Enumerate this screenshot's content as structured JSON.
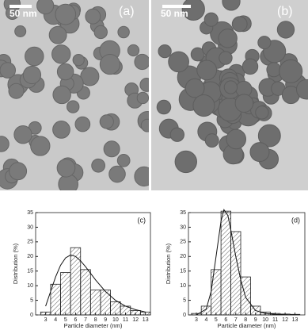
{
  "images": [
    {
      "scale_bar": "50 nm",
      "label": "(a)"
    },
    {
      "scale_bar": "50 nm",
      "label": "(b)"
    }
  ],
  "chart_data": [
    {
      "type": "histogram",
      "label": "(c)",
      "xlabel": "Particle diameter (nm)",
      "ylabel": "Distribution (%)",
      "bins": [
        2.5,
        3.5,
        4.5,
        5.5,
        6.5,
        7.5,
        8.5,
        9.5,
        10.5,
        11.5,
        12.5,
        13.5
      ],
      "values": [
        1,
        10.5,
        14.5,
        23,
        15.5,
        8.5,
        8.5,
        4.5,
        3,
        1.5,
        1
      ],
      "fit": {
        "x": [
          3,
          3.5,
          4,
          4.5,
          5,
          5.5,
          6,
          6.5,
          7,
          8,
          9,
          10,
          11,
          12,
          13
        ],
        "values": [
          3,
          8,
          13,
          17,
          19.5,
          20.5,
          20,
          18.5,
          16.5,
          12,
          8,
          5,
          3,
          1.8,
          1
        ]
      },
      "xlim": [
        2,
        13.5
      ],
      "ylim": [
        0,
        35
      ],
      "xticks": [
        3,
        4,
        5,
        6,
        7,
        8,
        9,
        10,
        11,
        12,
        13
      ],
      "yticks": [
        0,
        5,
        10,
        15,
        20,
        25,
        30,
        35
      ]
    },
    {
      "type": "histogram",
      "label": "(d)",
      "xlabel": "Particle diameter (nm)",
      "ylabel": "Distribution (%)",
      "bins": [
        2.5,
        3.5,
        4.5,
        5.5,
        6.5,
        7.5,
        8.5,
        9.5,
        10.5,
        11.5,
        12.5,
        13.5
      ],
      "values": [
        0.5,
        3,
        15.5,
        35.5,
        28.5,
        13,
        3,
        1,
        0.5,
        0.3,
        0.2
      ],
      "fit": {
        "x": [
          3,
          4,
          4.5,
          5,
          5.5,
          5.8,
          6.2,
          6.5,
          7,
          7.5,
          8,
          9,
          10,
          11,
          13
        ],
        "values": [
          0,
          2,
          8,
          20,
          32,
          36,
          34,
          29,
          20,
          12,
          6,
          1.5,
          0.5,
          0.2,
          0
        ]
      },
      "xlim": [
        2.2,
        14
      ],
      "ylim": [
        0,
        35
      ],
      "xticks": [
        3,
        4,
        5,
        6,
        7,
        8,
        9,
        10,
        11,
        12,
        13
      ],
      "yticks": [
        0,
        5,
        10,
        15,
        20,
        25,
        30,
        35
      ]
    }
  ]
}
